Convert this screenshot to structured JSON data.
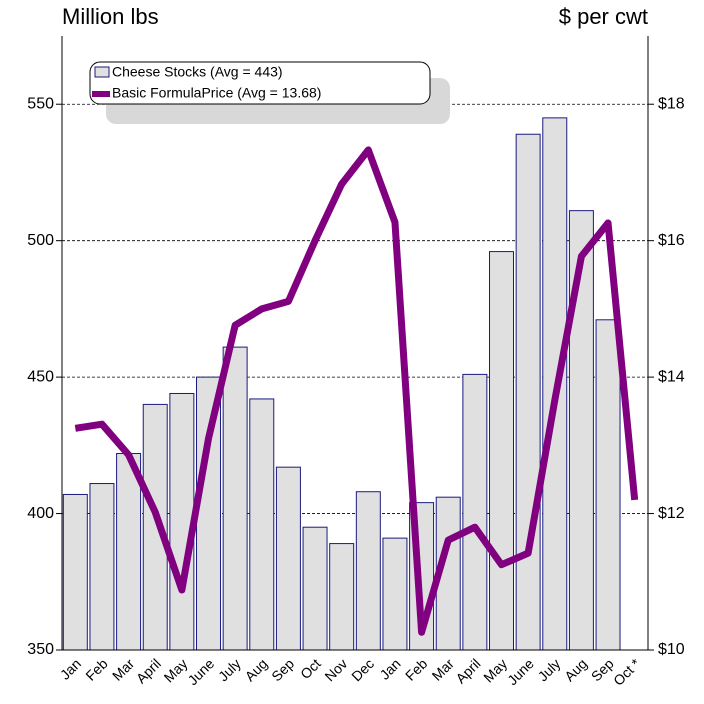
{
  "chart_data": {
    "type": "bar-line",
    "y_label": "Million lbs",
    "y2_label": "$ per cwt",
    "categories": [
      "Jan",
      "Feb",
      "Mar",
      "April",
      "May",
      "June",
      "July",
      "Aug",
      "Sep",
      "Oct",
      "Nov",
      "Dec",
      "Jan",
      "Feb",
      "Mar",
      "April",
      "May",
      "June",
      "July",
      "Aug",
      "Sep",
      "Oct *"
    ],
    "series": [
      {
        "name": "Cheese Stocks (Avg = 443)",
        "color": "#e0e0e0",
        "stroke": "#1a1a80",
        "values": [
          407,
          411,
          422,
          440,
          444,
          450,
          461,
          442,
          417,
          395,
          389,
          408,
          391,
          404,
          406,
          451,
          496,
          539,
          545,
          511,
          471,
          null
        ]
      },
      {
        "name": "Basic FormulaPrice (Avg = 13.68)",
        "color": "#800080",
        "axis": "y2",
        "values": [
          13.25,
          13.31,
          12.86,
          12.02,
          10.88,
          13.1,
          14.76,
          15.0,
          15.11,
          16.0,
          16.83,
          17.33,
          16.27,
          10.26,
          11.61,
          11.8,
          11.25,
          11.42,
          13.66,
          15.77,
          16.26,
          12.2
        ]
      }
    ],
    "ylim": [
      350,
      575
    ],
    "yticks": [
      350,
      400,
      450,
      500,
      550
    ],
    "y2lim": [
      10,
      19
    ],
    "y2ticks": [
      {
        "value": 10,
        "label": "$10"
      },
      {
        "value": 12,
        "label": "$12"
      },
      {
        "value": 14,
        "label": "$14"
      },
      {
        "value": 16,
        "label": "$16"
      },
      {
        "value": 18,
        "label": "$18"
      }
    ],
    "grid": true
  }
}
